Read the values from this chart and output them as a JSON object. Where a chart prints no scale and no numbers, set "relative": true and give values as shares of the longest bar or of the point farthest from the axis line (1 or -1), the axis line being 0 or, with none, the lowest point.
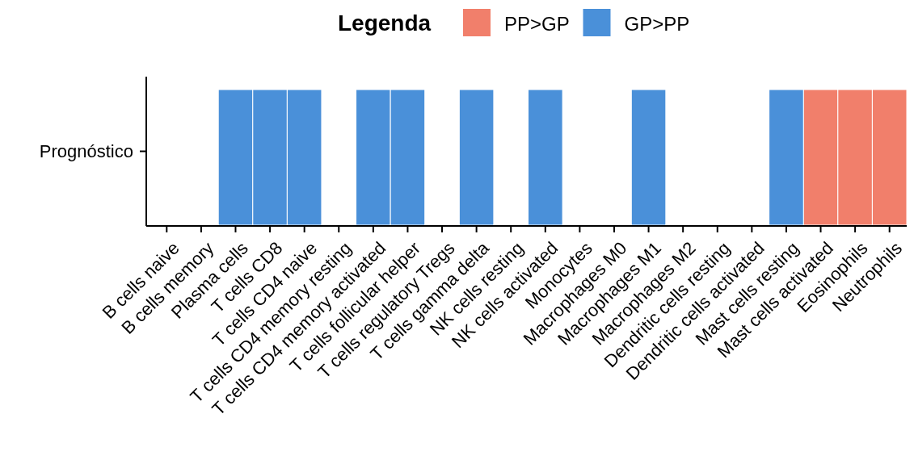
{
  "chart_data": {
    "type": "bar",
    "relative": true,
    "categories": [
      "B cells naive",
      "B cells memory",
      "Plasma cells",
      "T cells CD8",
      "T cells CD4 naive",
      "T cells CD4 memory resting",
      "T cells CD4 memory activated",
      "T cells follicular helper",
      "T cells regulatory  Tregs",
      "T cells gamma delta",
      "NK cells resting",
      "NK cells activated",
      "Monocytes",
      "Macrophages M0",
      "Macrophages M1",
      "Macrophages M2",
      "Dendritic cells resting",
      "Dendritic cells activated",
      "Mast cells resting",
      "Mast cells activated",
      "Eosinophils",
      "Neutrophils"
    ],
    "ylabel": "Prognóstico",
    "series": [
      {
        "name": "PP>GP",
        "color": "#f17f6b",
        "values": [
          null,
          null,
          null,
          null,
          null,
          null,
          null,
          null,
          null,
          null,
          null,
          null,
          null,
          null,
          null,
          null,
          null,
          null,
          null,
          1,
          1,
          1
        ]
      },
      {
        "name": "GP>PP",
        "color": "#4a90d9",
        "values": [
          null,
          null,
          1,
          1,
          1,
          null,
          1,
          1,
          null,
          1,
          null,
          1,
          null,
          null,
          1,
          null,
          null,
          null,
          1,
          null,
          null,
          null
        ]
      }
    ],
    "legend_title": "Legenda",
    "legend": "top"
  }
}
